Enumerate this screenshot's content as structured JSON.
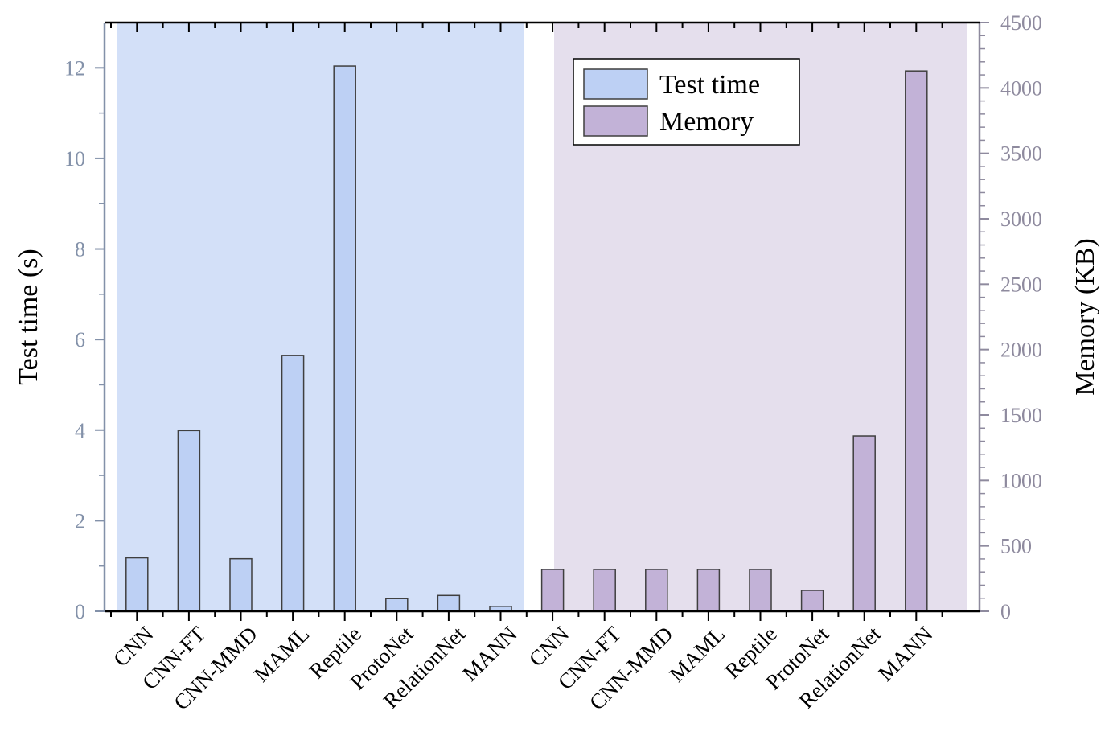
{
  "chart_data": {
    "type": "bar",
    "panels": [
      {
        "name": "Test time",
        "y_axis": "left",
        "categories": [
          "CNN",
          "CNN-FT",
          "CNN-MMD",
          "MAML",
          "Reptile",
          "ProtoNet",
          "RelationNet",
          "MANN"
        ],
        "values": [
          1.18,
          3.99,
          1.16,
          5.65,
          12.04,
          0.28,
          0.35,
          0.11
        ]
      },
      {
        "name": "Memory",
        "y_axis": "right",
        "categories": [
          "CNN",
          "CNN-FT",
          "CNN-MMD",
          "MAML",
          "Reptile",
          "ProtoNet",
          "RelationNet",
          "MANN"
        ],
        "values": [
          320,
          320,
          320,
          320,
          320,
          160,
          1340,
          4130
        ]
      }
    ],
    "y_left": {
      "label": "Test time (s)",
      "lim": [
        0,
        13
      ],
      "ticks": [
        0,
        2,
        4,
        6,
        8,
        10,
        12
      ],
      "color": "#8391a9"
    },
    "y_right": {
      "label": "Memory (KB)",
      "lim": [
        0,
        4500
      ],
      "ticks": [
        0,
        500,
        1000,
        1500,
        2000,
        2500,
        3000,
        3500,
        4000,
        4500
      ],
      "color": "#8e8a9e"
    },
    "legend": {
      "position": "top-center",
      "entries": [
        {
          "label": "Test time",
          "color": "#bdd0f4"
        },
        {
          "label": "Memory",
          "color": "#c2b2d7"
        }
      ]
    },
    "colors": {
      "test_time_bar": "#bdd0f4",
      "memory_bar": "#c2b2d7",
      "test_time_background": "#d3e0f8",
      "memory_background": "#e5dfed",
      "bar_edge": "#3f3f3f"
    },
    "grid": false
  }
}
